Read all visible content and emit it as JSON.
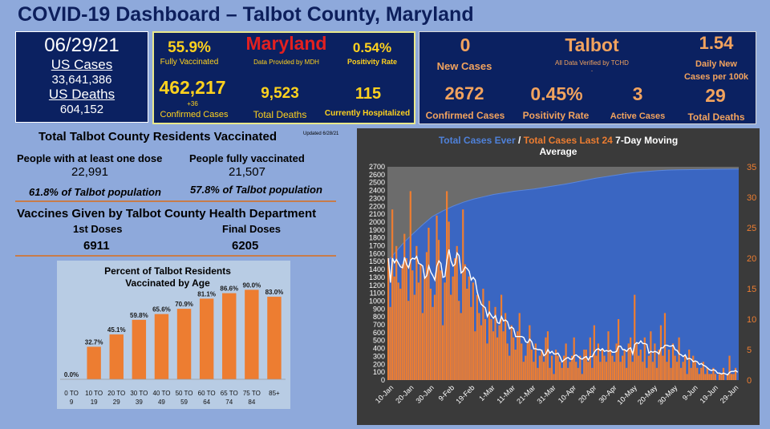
{
  "title": "COVID-19 Dashboard – Talbot County, Maryland",
  "us": {
    "date": "06/29/21",
    "cases_label": "US Cases",
    "cases": "33,641,386",
    "deaths_label": "US Deaths",
    "deaths": "604,152"
  },
  "maryland": {
    "name": "Maryland",
    "source": "Data Provided by MDH",
    "vaccinated_pct": "55.9%",
    "vaccinated_label": "Fully Vaccinated",
    "positivity": "0.54%",
    "positivity_label": "Positivity Rate",
    "confirmed": "462,217",
    "confirmed_delta": "+36",
    "confirmed_label": "Confirmed Cases",
    "deaths": "9,523",
    "deaths_label": "Total Deaths",
    "hospitalized": "115",
    "hospitalized_label": "Currently Hospitalized"
  },
  "talbot": {
    "name": "Talbot",
    "source": "All Data Verified by TCHD",
    "source_mark": ".",
    "new_cases": "0",
    "new_cases_label": "New Cases",
    "daily_new": "1.54",
    "daily_new_label_1": "Daily New",
    "daily_new_label_2": "Cases per 100k",
    "confirmed": "2672",
    "confirmed_label": "Confirmed Cases",
    "positivity": "0.45%",
    "positivity_label": "Positivity Rate",
    "active": "3",
    "active_label": "Active Cases",
    "deaths": "29",
    "deaths_label": "Total Deaths"
  },
  "vaccination": {
    "heading": "Total Talbot County Residents Vaccinated",
    "updated": "Updated 6/28/21",
    "one_dose_label": "People with at least one dose",
    "one_dose": "22,991",
    "one_dose_pct": "61.8% of Talbot population",
    "full_label": "People fully vaccinated",
    "full": "21,507",
    "full_pct": "57.8% of Talbot population",
    "tchd_heading": "Vaccines Given by Talbot County Health Department",
    "first_label": "1st Doses",
    "first": "6911",
    "final_label": "Final Doses",
    "final": "6205"
  },
  "colors": {
    "panel": "#0b2161",
    "bar_orange": "#ed7d31",
    "area_blue": "#4472c4",
    "yellow": "#ffd21e",
    "orange_text": "#f2a35e",
    "red": "#e32020"
  },
  "chart_data": [
    {
      "type": "bar",
      "title_line1": "Percent of Talbot Residents",
      "title_line2": "Vaccinated by Age",
      "categories": [
        [
          "0 TO",
          "9"
        ],
        [
          "10 TO",
          "19"
        ],
        [
          "20 TO",
          "29"
        ],
        [
          "30 TO",
          "39"
        ],
        [
          "40 TO",
          "49"
        ],
        [
          "50 TO",
          "59"
        ],
        [
          "60 TO",
          "64"
        ],
        [
          "65 TO",
          "74"
        ],
        [
          "75 TO",
          "84"
        ],
        [
          "85+",
          ""
        ]
      ],
      "values": [
        0.0,
        32.7,
        45.1,
        59.8,
        65.6,
        70.9,
        81.1,
        86.6,
        90.0,
        83.0
      ],
      "labels": [
        "0.0%",
        "32.7%",
        "45.1%",
        "59.8%",
        "65.6%",
        "70.9%",
        "81.1%",
        "86.6%",
        "90.0%",
        "83.0%"
      ],
      "ylim": [
        0,
        100
      ]
    },
    {
      "type": "area",
      "title_parts": [
        "Total Cases Ever",
        " / ",
        "Total Cases Last 24",
        "  7-Day Moving"
      ],
      "title_line2": "Average",
      "x_labels": [
        "10-Jan",
        "20-Jan",
        "30-Jan",
        "9-Feb",
        "19-Feb",
        "1-Mar",
        "11-Mar",
        "21-Mar",
        "31-Mar",
        "10-Apr",
        "20-Apr",
        "30-Apr",
        "10-May",
        "20-May",
        "30-May",
        "9-Jun",
        "19-Jun",
        "29-Jun"
      ],
      "x_start": "2021-01-08",
      "x_end": "2021-06-29",
      "ylim_left": [
        0,
        2700
      ],
      "yticks_left": [
        0,
        100,
        200,
        300,
        400,
        500,
        600,
        700,
        800,
        900,
        1000,
        1100,
        1200,
        1300,
        1400,
        1500,
        1600,
        1700,
        1800,
        1900,
        2000,
        2100,
        2200,
        2300,
        2400,
        2500,
        2600,
        2700
      ],
      "ylim_right": [
        0,
        35
      ],
      "yticks_right": [
        0,
        5,
        10,
        15,
        20,
        25,
        30,
        35
      ],
      "total_cases": [
        [
          "2021-01-08",
          1500
        ],
        [
          "2021-01-12",
          1620
        ],
        [
          "2021-01-16",
          1740
        ],
        [
          "2021-01-20",
          1840
        ],
        [
          "2021-01-25",
          1960
        ],
        [
          "2021-01-30",
          2070
        ],
        [
          "2021-02-04",
          2140
        ],
        [
          "2021-02-09",
          2200
        ],
        [
          "2021-02-14",
          2250
        ],
        [
          "2021-02-19",
          2290
        ],
        [
          "2021-02-24",
          2320
        ],
        [
          "2021-03-01",
          2350
        ],
        [
          "2021-03-06",
          2370
        ],
        [
          "2021-03-11",
          2390
        ],
        [
          "2021-03-16",
          2405
        ],
        [
          "2021-03-21",
          2420
        ],
        [
          "2021-03-26",
          2440
        ],
        [
          "2021-03-31",
          2460
        ],
        [
          "2021-04-05",
          2480
        ],
        [
          "2021-04-10",
          2505
        ],
        [
          "2021-04-15",
          2530
        ],
        [
          "2021-04-20",
          2555
        ],
        [
          "2021-04-25",
          2575
        ],
        [
          "2021-04-30",
          2595
        ],
        [
          "2021-05-05",
          2615
        ],
        [
          "2021-05-10",
          2630
        ],
        [
          "2021-05-15",
          2640
        ],
        [
          "2021-05-20",
          2650
        ],
        [
          "2021-05-25",
          2658
        ],
        [
          "2021-05-30",
          2662
        ],
        [
          "2021-06-09",
          2666
        ],
        [
          "2021-06-19",
          2670
        ],
        [
          "2021-06-29",
          2672
        ]
      ],
      "daily_cases": [
        20,
        12,
        28,
        17,
        22,
        16,
        15,
        19,
        24,
        20,
        13,
        31,
        18,
        14,
        22,
        16,
        19,
        11,
        17,
        21,
        25,
        15,
        12,
        14,
        27,
        23,
        18,
        9,
        16,
        31,
        26,
        14,
        17,
        20,
        22,
        13,
        11,
        28,
        19,
        15,
        17,
        12,
        16,
        8,
        14,
        11,
        9,
        15,
        10,
        6,
        13,
        10,
        8,
        12,
        7,
        9,
        14,
        8,
        11,
        6,
        4,
        9,
        7,
        5,
        8,
        11,
        6,
        3,
        4,
        6,
        9,
        5,
        3,
        6,
        2,
        4,
        5,
        3,
        7,
        8,
        2,
        4,
        1,
        5,
        4,
        3,
        2,
        4,
        6,
        2,
        3,
        4,
        7,
        3,
        2,
        4,
        1,
        5,
        5,
        3,
        7,
        2,
        9,
        4,
        6,
        3,
        5,
        4,
        3,
        8,
        5,
        4,
        3,
        6,
        10,
        3,
        4,
        5,
        2,
        6,
        7,
        3,
        14,
        6,
        4,
        5,
        3,
        7,
        2,
        4,
        8,
        3,
        6,
        2,
        5,
        9,
        4,
        11,
        3,
        5,
        2,
        6,
        4,
        3,
        7,
        2,
        3,
        4,
        1,
        5,
        2,
        4,
        3,
        2,
        1,
        2,
        3,
        1,
        2,
        1,
        1,
        2,
        1,
        0,
        1,
        1,
        2,
        0,
        1,
        4,
        1,
        1,
        2,
        0
      ]
    }
  ]
}
